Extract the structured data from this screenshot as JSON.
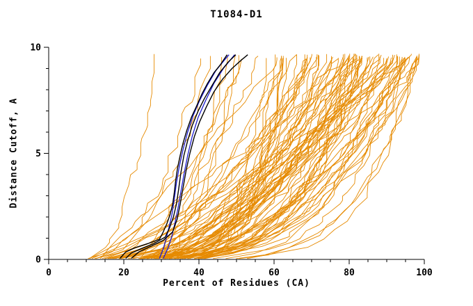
{
  "title": "T1084-D1",
  "chart_data": {
    "type": "line",
    "title": "T1084-D1",
    "xlabel": "Percent of Residues (CA)",
    "ylabel": "Distance Cutoff, A",
    "xlim": [
      0,
      100
    ],
    "ylim": [
      0,
      10
    ],
    "x_ticks": [
      0,
      20,
      40,
      60,
      80,
      100
    ],
    "y_ticks": [
      0,
      5,
      10
    ],
    "x_minor_step": 5,
    "y_minor_step": 1,
    "grid": false,
    "legend": "none",
    "colors": {
      "ensemble": "#e68a00",
      "black_highlight": "#000000",
      "blue_highlight": "#1c1ccd",
      "axis": "#000000",
      "background": "#ffffff"
    },
    "ensemble": {
      "name": "all-predicted-model-curves",
      "color": "#e68a00",
      "count": 95,
      "seed": 11,
      "x_start_range": [
        7,
        36
      ],
      "x_end_max": 99.5,
      "y_top": 9.7
    },
    "black_curves": [
      [
        [
          19,
          0.05
        ],
        [
          20.5,
          0.35
        ],
        [
          23,
          0.55
        ],
        [
          26.5,
          0.75
        ],
        [
          29.5,
          0.95
        ],
        [
          30.5,
          1.3
        ],
        [
          31.5,
          1.7
        ],
        [
          32.3,
          2.1
        ],
        [
          33,
          2.6
        ],
        [
          33.4,
          3.1
        ],
        [
          33.8,
          3.7
        ],
        [
          34.3,
          4.3
        ],
        [
          35,
          4.9
        ],
        [
          35.8,
          5.5
        ],
        [
          36.8,
          6.1
        ],
        [
          38,
          6.7
        ],
        [
          39.3,
          7.2
        ],
        [
          40.8,
          7.8
        ],
        [
          42.3,
          8.3
        ],
        [
          44,
          8.8
        ],
        [
          45.8,
          9.2
        ],
        [
          47.5,
          9.65
        ]
      ],
      [
        [
          20.5,
          0.05
        ],
        [
          22,
          0.3
        ],
        [
          24.5,
          0.5
        ],
        [
          28,
          0.75
        ],
        [
          31,
          1.05
        ],
        [
          32.2,
          1.5
        ],
        [
          33.2,
          2.0
        ],
        [
          34,
          2.6
        ],
        [
          34.6,
          3.3
        ],
        [
          35.2,
          4.1
        ],
        [
          36,
          4.9
        ],
        [
          37,
          5.6
        ],
        [
          38.2,
          6.3
        ],
        [
          39.8,
          7.0
        ],
        [
          41.5,
          7.6
        ],
        [
          43.5,
          8.2
        ],
        [
          45.5,
          8.8
        ],
        [
          47.8,
          9.3
        ],
        [
          49.8,
          9.65
        ]
      ],
      [
        [
          22,
          0.05
        ],
        [
          24,
          0.35
        ],
        [
          27,
          0.6
        ],
        [
          30.5,
          0.9
        ],
        [
          33,
          1.3
        ],
        [
          34.2,
          1.9
        ],
        [
          35,
          2.6
        ],
        [
          35.8,
          3.4
        ],
        [
          36.6,
          4.2
        ],
        [
          37.6,
          5.0
        ],
        [
          38.8,
          5.8
        ],
        [
          40.2,
          6.5
        ],
        [
          42,
          7.2
        ],
        [
          44,
          7.9
        ],
        [
          46.3,
          8.5
        ],
        [
          48.8,
          9.0
        ],
        [
          51.3,
          9.4
        ],
        [
          53,
          9.65
        ]
      ]
    ],
    "blue_curves": [
      [
        [
          29.5,
          0.05
        ],
        [
          30.5,
          0.5
        ],
        [
          31.3,
          1.0
        ],
        [
          32,
          1.5
        ],
        [
          32.8,
          2.1
        ],
        [
          33.4,
          2.8
        ],
        [
          34,
          3.6
        ],
        [
          34.8,
          4.4
        ],
        [
          35.8,
          5.2
        ],
        [
          37,
          6.0
        ],
        [
          38.5,
          6.8
        ],
        [
          40.2,
          7.5
        ],
        [
          42.2,
          8.2
        ],
        [
          44.5,
          8.9
        ],
        [
          46.8,
          9.4
        ],
        [
          48,
          9.65
        ]
      ],
      [
        [
          30.5,
          0.05
        ],
        [
          31.8,
          0.55
        ],
        [
          32.8,
          1.1
        ],
        [
          33.6,
          1.7
        ],
        [
          34.4,
          2.4
        ],
        [
          35.2,
          3.2
        ],
        [
          36,
          4.0
        ],
        [
          37,
          4.9
        ],
        [
          38.2,
          5.8
        ],
        [
          39.8,
          6.7
        ],
        [
          41.8,
          7.5
        ],
        [
          44,
          8.3
        ],
        [
          46.5,
          9.0
        ],
        [
          49.5,
          9.65
        ]
      ]
    ]
  }
}
